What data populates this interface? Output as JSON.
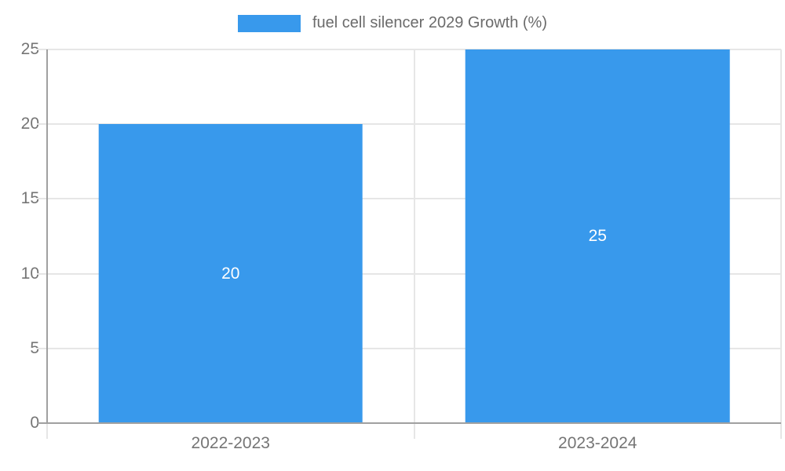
{
  "chart_data": {
    "type": "bar",
    "title": "fuel cell silencer 2029 Growth (%)",
    "categories": [
      "2022-2023",
      "2023-2024"
    ],
    "values": [
      20,
      25
    ],
    "xlabel": "",
    "ylabel": "",
    "ylim": [
      0,
      25
    ],
    "yticks": [
      0,
      5,
      10,
      15,
      20,
      25
    ],
    "grid": true,
    "legend_position": "top-center",
    "bar_width_fraction": 0.72,
    "colors": {
      "bar": "#3899EC",
      "grid": "#E6E6E6",
      "axis": "#A0A0A0",
      "tick_label": "#757575",
      "legend_text": "#6B6B6B",
      "value_label": "#FFFFFF",
      "background": "#FFFFFF"
    }
  }
}
